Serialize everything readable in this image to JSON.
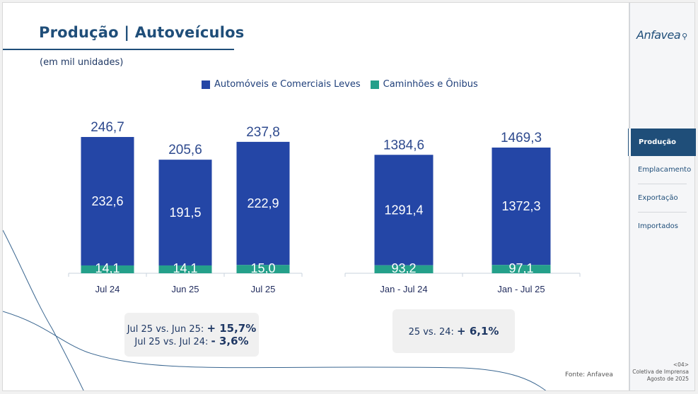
{
  "header": {
    "title": "Produção | Autoveículos",
    "subtitle": "(em mil unidades)"
  },
  "colors": {
    "autos": "#2446a6",
    "trucks": "#24a08a",
    "title": "#1f4e79",
    "text": "#1f3864"
  },
  "chart_data": {
    "type": "bar",
    "stacked": true,
    "title": "Produção | Autoveículos",
    "ylabel": "em mil unidades",
    "legend": [
      "Automóveis e Comerciais Leves",
      "Caminhões e Ônibus"
    ],
    "legend_position": "top-center",
    "groups": [
      {
        "categories": [
          "Jul 24",
          "Jun 25",
          "Jul 25"
        ],
        "totals": [
          "246,7",
          "205,6",
          "237,8"
        ],
        "series": [
          {
            "name": "Automóveis e Comerciais Leves",
            "values": [
              232.6,
              191.5,
              222.9
            ],
            "labels": [
              "232,6",
              "191,5",
              "222,9"
            ]
          },
          {
            "name": "Caminhões e Ônibus",
            "values": [
              14.1,
              14.1,
              15.0
            ],
            "labels": [
              "14,1",
              "14,1",
              "15,0"
            ]
          }
        ],
        "ylim": [
          0,
          260
        ]
      },
      {
        "categories": [
          "Jan - Jul 24",
          "Jan - Jul 25"
        ],
        "totals": [
          "1384,6",
          "1469,3"
        ],
        "series": [
          {
            "name": "Automóveis e Comerciais Leves",
            "values": [
              1291.4,
              1372.3
            ],
            "labels": [
              "1291,4",
              "1372,3"
            ]
          },
          {
            "name": "Caminhões e Ônibus",
            "values": [
              93.2,
              97.1
            ],
            "labels": [
              "93,2",
              "97,1"
            ]
          }
        ],
        "ylim": [
          0,
          1550
        ]
      }
    ]
  },
  "comparisons": {
    "monthly": [
      {
        "label": "Jul 25 vs. Jun 25:",
        "value": "+ 15,7%"
      },
      {
        "label": "Jul 25 vs. Jul 24:",
        "value": "- 3,6%"
      }
    ],
    "ytd": [
      {
        "label": "25 vs. 24:",
        "value": "+ 6,1%"
      }
    ]
  },
  "source": "Fonte: Anfavea",
  "sidebar": {
    "logo": "Anfavea",
    "items": [
      {
        "label": "Produção",
        "active": true
      },
      {
        "label": "Emplacamento",
        "active": false
      },
      {
        "label": "Exportação",
        "active": false
      },
      {
        "label": "Importados",
        "active": false
      }
    ],
    "footer": {
      "page": "<04>",
      "event": "Coletiva de Imprensa",
      "date": "Agosto de 2025"
    }
  }
}
